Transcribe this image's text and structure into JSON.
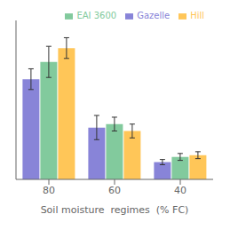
{
  "chart_data": {
    "type": "bar",
    "title": "",
    "xlabel": "Soil moisture  regimes  (% FC)",
    "categories": [
      "80",
      "60",
      "40"
    ],
    "series": [
      {
        "name": "Gazelle",
        "color": "#8884d8",
        "values": [
          0.58,
          0.3,
          0.1
        ],
        "errors": [
          0.06,
          0.07,
          0.015
        ]
      },
      {
        "name": "EAI 3600",
        "color": "#82ca9d",
        "values": [
          0.68,
          0.32,
          0.13
        ],
        "errors": [
          0.09,
          0.04,
          0.02
        ]
      },
      {
        "name": "Hill",
        "color": "#ffc658",
        "values": [
          0.76,
          0.28,
          0.14
        ],
        "errors": [
          0.06,
          0.04,
          0.02
        ]
      }
    ],
    "ylim": [
      0,
      0.92
    ],
    "yticks": [],
    "grid": false,
    "legend": "upper right",
    "tick_labels": "x"
  }
}
